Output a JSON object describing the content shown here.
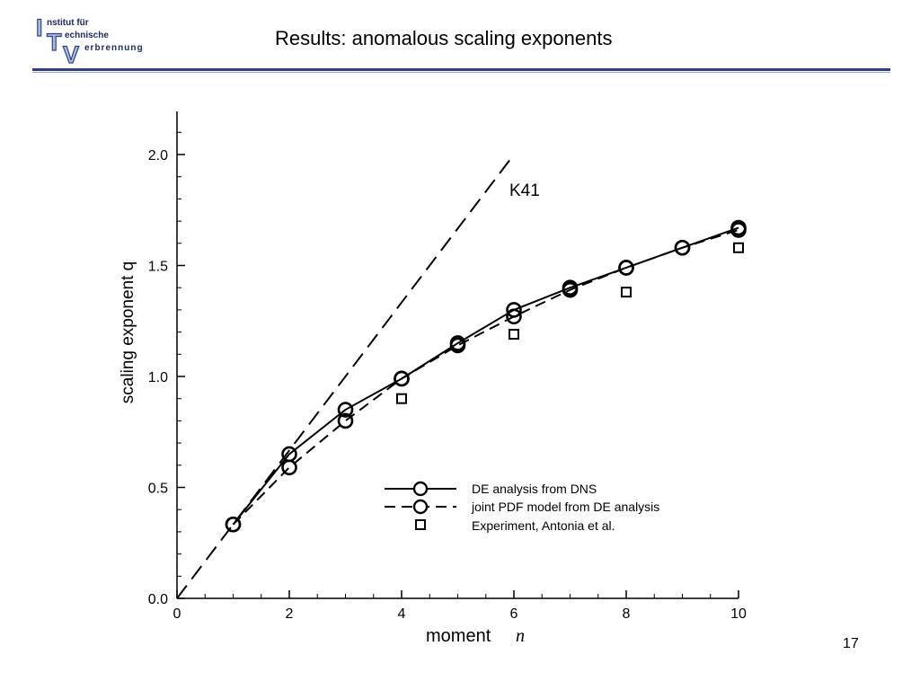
{
  "header": {
    "logo": {
      "letters": [
        "I",
        "T",
        "V"
      ],
      "lines": [
        "nstitut für",
        "echnische",
        "erbrennung"
      ]
    },
    "title": "Results: anomalous scaling exponents"
  },
  "footer": {
    "page_number": "17"
  },
  "colors": {
    "brand_blue": "#2b3f8c",
    "logo_light_blue": "#a8bde0",
    "series": "#000000"
  },
  "chart_data": {
    "type": "line",
    "xlabel": "moment",
    "xlabel_symbol": "n",
    "ylabel": "scaling exponent q",
    "xlim": [
      0,
      10
    ],
    "ylim": [
      0,
      2.2
    ],
    "xticks": [
      0,
      2,
      4,
      6,
      8,
      10
    ],
    "yticks": [
      0.0,
      0.5,
      1.0,
      1.5,
      2.0
    ],
    "xtick_labels": [
      "0",
      "2",
      "4",
      "6",
      "8",
      "10"
    ],
    "ytick_labels": [
      "0.0",
      "0.5",
      "1.0",
      "1.5",
      "2.0"
    ],
    "grid": false,
    "legend_position": "lower-right",
    "annotations": [
      {
        "text": "K41",
        "x": 5.9,
        "y": 1.85
      }
    ],
    "reference_line": {
      "label": "K41",
      "x": [
        0,
        6
      ],
      "y": [
        0,
        2.0
      ],
      "style": "dashed"
    },
    "series": [
      {
        "name": "DE analysis from DNS",
        "style": "solid",
        "marker": "circle",
        "x": [
          1,
          2,
          3,
          4,
          5,
          6,
          7,
          8,
          9,
          10
        ],
        "y": [
          0.333,
          0.65,
          0.85,
          0.99,
          1.15,
          1.3,
          1.4,
          1.49,
          1.58,
          1.67
        ]
      },
      {
        "name": "joint PDF model from DE analysis",
        "style": "dashed",
        "marker": "circle",
        "x": [
          1,
          2,
          3,
          4,
          5,
          6,
          7,
          8,
          9,
          10
        ],
        "y": [
          0.333,
          0.59,
          0.8,
          0.99,
          1.14,
          1.27,
          1.39,
          1.49,
          1.58,
          1.66
        ]
      },
      {
        "name": "Experiment, Antonia et al.",
        "style": "none",
        "marker": "square",
        "x": [
          4,
          6,
          8,
          10
        ],
        "y": [
          0.9,
          1.19,
          1.38,
          1.58
        ]
      }
    ]
  }
}
